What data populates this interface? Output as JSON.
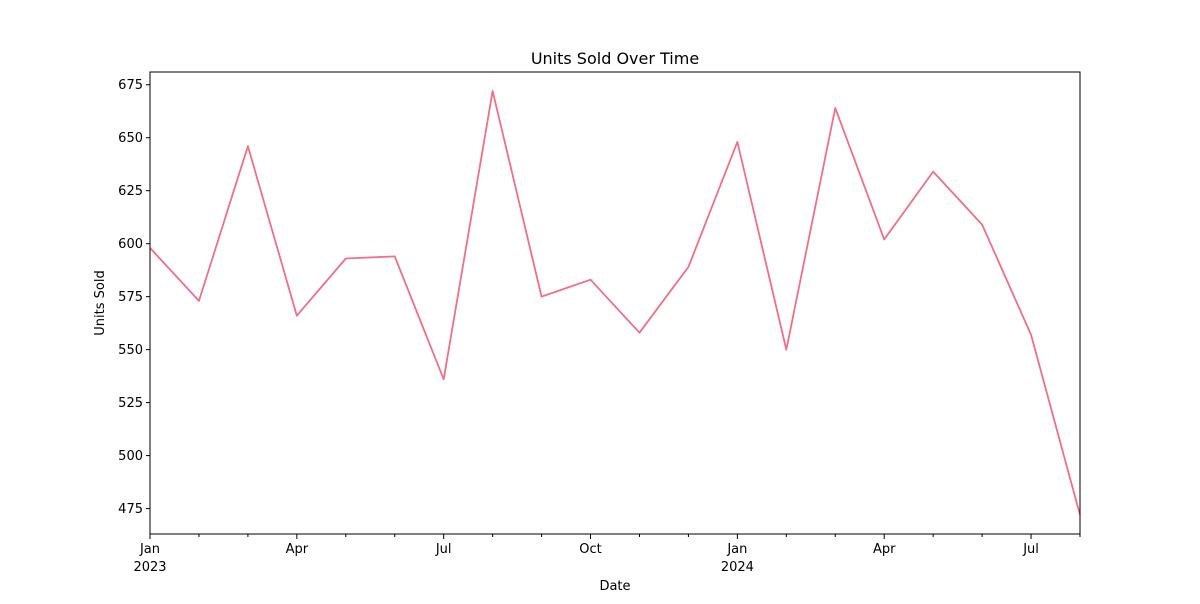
{
  "chart_data": {
    "type": "line",
    "title": "Units Sold Over Time",
    "xlabel": "Date",
    "ylabel": "Units Sold",
    "x": [
      "2023-01",
      "2023-02",
      "2023-03",
      "2023-04",
      "2023-05",
      "2023-06",
      "2023-07",
      "2023-08",
      "2023-09",
      "2023-10",
      "2023-11",
      "2023-12",
      "2024-01",
      "2024-02",
      "2024-03",
      "2024-04",
      "2024-05",
      "2024-06",
      "2024-07",
      "2024-08"
    ],
    "series": [
      {
        "values": [
          598,
          573,
          646,
          566,
          593,
          594,
          536,
          672,
          575,
          583,
          558,
          589,
          648,
          550,
          664,
          602,
          634,
          609,
          557,
          472
        ],
        "color": "#f0708a"
      }
    ],
    "xlim": [
      "2023-01",
      "2024-08"
    ],
    "ylim": [
      463,
      681
    ],
    "yticks": [
      475,
      500,
      525,
      550,
      575,
      600,
      625,
      650,
      675
    ],
    "xticks_major": [
      {
        "x": "2023-01",
        "label": "Jan",
        "year": "2023"
      },
      {
        "x": "2023-04",
        "label": "Apr"
      },
      {
        "x": "2023-07",
        "label": "Jul"
      },
      {
        "x": "2023-10",
        "label": "Oct"
      },
      {
        "x": "2024-01",
        "label": "Jan",
        "year": "2024"
      },
      {
        "x": "2024-04",
        "label": "Apr"
      },
      {
        "x": "2024-07",
        "label": "Jul"
      }
    ],
    "xticks_minor": [
      "2023-02",
      "2023-03",
      "2023-05",
      "2023-06",
      "2023-08",
      "2023-09",
      "2023-11",
      "2023-12",
      "2024-02",
      "2024-03",
      "2024-05",
      "2024-06",
      "2024-08"
    ],
    "grid": false,
    "legend": "none"
  }
}
